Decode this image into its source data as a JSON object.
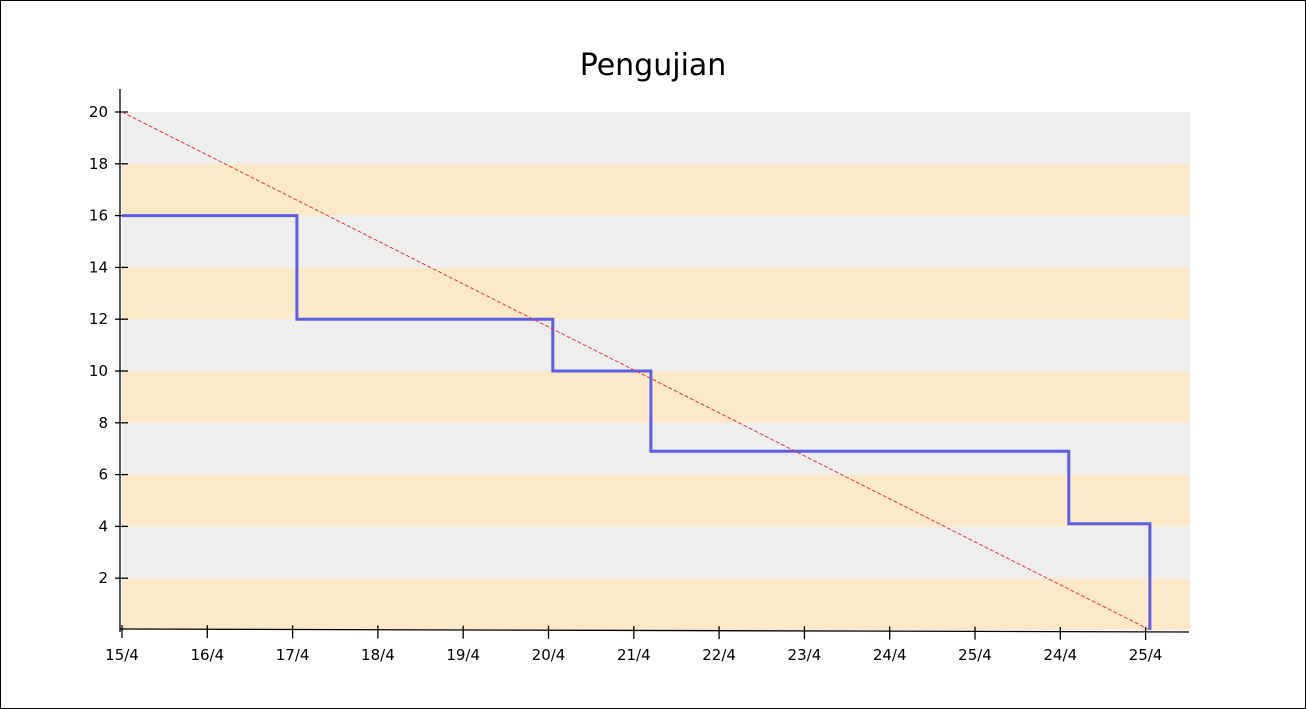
{
  "chart_data": {
    "type": "line",
    "title": "Pengujian",
    "xlabel": "",
    "ylabel": "",
    "x_tick_labels": [
      "15/4",
      "16/4",
      "17/4",
      "18/4",
      "19/4",
      "20/4",
      "21/4",
      "22/4",
      "23/4",
      "24/4",
      "25/4",
      "24/4",
      "25/4"
    ],
    "y_ticks": [
      2,
      4,
      6,
      8,
      10,
      12,
      14,
      16,
      18,
      20
    ],
    "ylim": [
      0,
      20
    ],
    "xlim": [
      0,
      12.5
    ],
    "grid": false,
    "band_colors": [
      "#fde9c8",
      "#eeeeee"
    ],
    "series": [
      {
        "color": "#5b5ee6",
        "style": "step",
        "x": [
          0,
          2.05,
          2.05,
          5.05,
          5.05,
          6.2,
          6.2,
          11.1,
          11.1,
          12.05,
          12.05
        ],
        "y": [
          16,
          16,
          12,
          12,
          10,
          10,
          6.9,
          6.9,
          4.1,
          4.1,
          0
        ]
      },
      {
        "color": "#e03a3a",
        "style": "dashed",
        "x": [
          0,
          12.05
        ],
        "y": [
          20,
          0
        ]
      }
    ]
  }
}
